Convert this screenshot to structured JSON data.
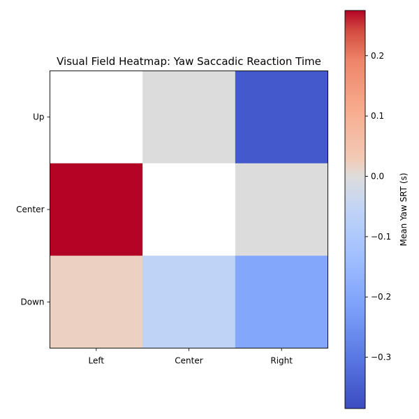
{
  "chart_data": {
    "type": "heatmap",
    "title": "Visual Field Heatmap: Yaw Saccadic Reaction Time",
    "x_categories": [
      "Left",
      "Center",
      "Right"
    ],
    "y_categories": [
      "Up",
      "Center",
      "Down"
    ],
    "values": [
      [
        null,
        0.0,
        -0.36
      ],
      [
        0.275,
        null,
        0.0
      ],
      [
        0.02,
        -0.06,
        -0.2
      ]
    ],
    "colormap": "coolwarm",
    "colorbar": {
      "label": "Mean Yaw SRT (s)",
      "vmin": -0.385,
      "vmax": 0.275,
      "ticks": [
        0.2,
        0.1,
        0.0,
        -0.1,
        -0.2,
        -0.3
      ],
      "tick_labels": [
        "0.2",
        "0.1",
        "0.0",
        "−0.1",
        "−0.2",
        "−0.3"
      ]
    }
  }
}
